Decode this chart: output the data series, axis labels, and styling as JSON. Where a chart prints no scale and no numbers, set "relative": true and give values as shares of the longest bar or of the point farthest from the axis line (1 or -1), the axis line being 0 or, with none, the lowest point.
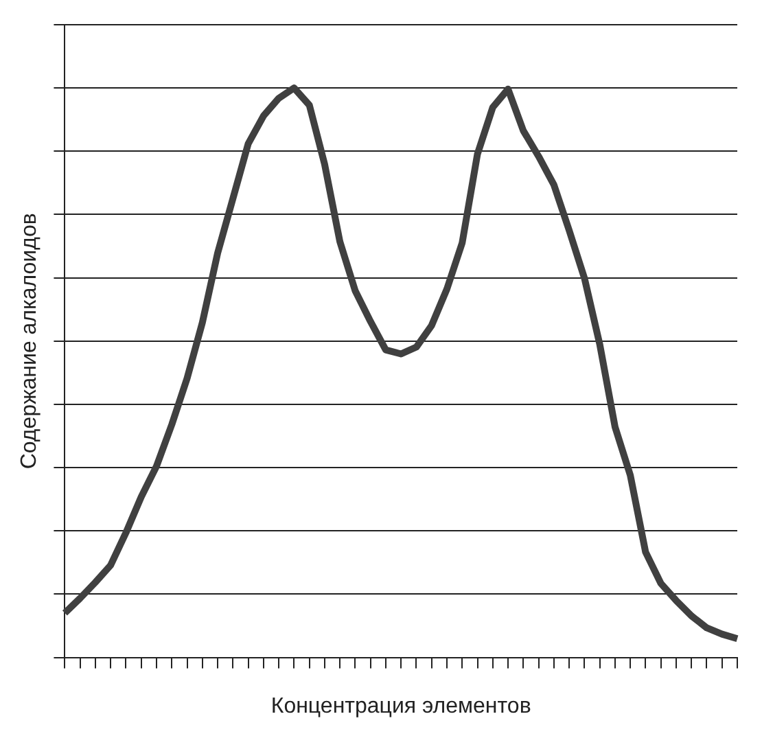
{
  "chart_data": {
    "type": "line",
    "relative": true,
    "xlabel": "Концентрация элементов",
    "ylabel": "Содержание алкалоидов",
    "grid": "y",
    "tick_labels": false,
    "marker": "none",
    "line_style": "solid",
    "categories": [
      null,
      null,
      null,
      null,
      null,
      null,
      null,
      null,
      null,
      null,
      null,
      null,
      null,
      null,
      null,
      null,
      null,
      null,
      null,
      null,
      null,
      null,
      null,
      null,
      null,
      null,
      null,
      null,
      null,
      null,
      null,
      null,
      null,
      null,
      null,
      null,
      null,
      null,
      null,
      null,
      null,
      null,
      null,
      null,
      null
    ],
    "series": [
      {
        "color": "#404040",
        "values": [
          0.078,
          0.104,
          0.132,
          0.162,
          0.219,
          0.282,
          0.336,
          0.409,
          0.49,
          0.588,
          0.71,
          0.806,
          0.902,
          0.951,
          0.982,
          1,
          0.97,
          0.866,
          0.73,
          0.644,
          0.59,
          0.54,
          0.533,
          0.545,
          0.583,
          0.647,
          0.728,
          0.884,
          0.966,
          0.998,
          0.925,
          0.88,
          0.83,
          0.75,
          0.666,
          0.55,
          0.405,
          0.32,
          0.185,
          0.13,
          0.1,
          0.073,
          0.052,
          0.041,
          0.033
        ]
      }
    ]
  }
}
